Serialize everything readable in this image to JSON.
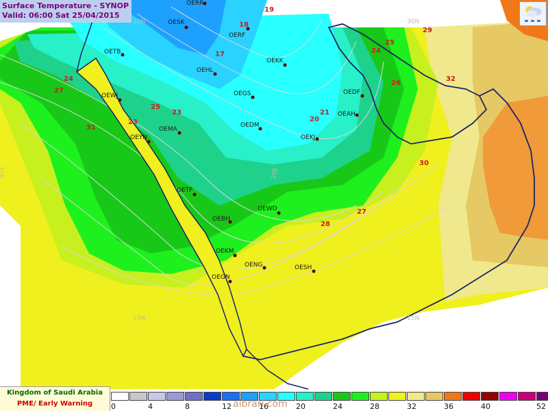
{
  "title": {
    "line1": "Surface Temperature  - SYNOP",
    "line2": "Valid: 06:00 Sat 25/04/2015"
  },
  "branding": {
    "line1": "Kingdom of Saudi Arabia",
    "line2": "PME/ Early Warning"
  },
  "watermark": "albrari.com",
  "colors": {
    "coast": "#1a2466",
    "station_dot": "#5a0000",
    "station_label": "#1a1a1a",
    "temp_label": "#cc1e1e",
    "contour": "#d8d8d8"
  },
  "legend": {
    "colors": [
      "#ffffff",
      "#c8c8c8",
      "#c8c8e8",
      "#9a9ad8",
      "#7070c8",
      "#0a3cc8",
      "#1e6ef0",
      "#1ea0ff",
      "#2ad2ff",
      "#28ffff",
      "#28f0c8",
      "#1ed28c",
      "#18c818",
      "#1ef01e",
      "#c8f01e",
      "#f0f01e",
      "#f0e88c",
      "#e6c864",
      "#f07818",
      "#f00000",
      "#960000",
      "#f000f0",
      "#c80078",
      "#780078"
    ],
    "ticks": [
      "0",
      "4",
      "8",
      "12",
      "16",
      "20",
      "24",
      "28",
      "32",
      "36",
      "40",
      "52"
    ]
  },
  "stations": [
    {
      "id": "OERR"
    },
    {
      "id": "OESK"
    },
    {
      "id": "OERF"
    },
    {
      "id": "OETB"
    },
    {
      "id": "OEHL"
    },
    {
      "id": "OEKK"
    },
    {
      "id": "OEWJ"
    },
    {
      "id": "OEGS"
    },
    {
      "id": "OEDF"
    },
    {
      "id": "OEAH"
    },
    {
      "id": "OEDM"
    },
    {
      "id": "OEMA"
    },
    {
      "id": "OEKJ"
    },
    {
      "id": "OEYN"
    },
    {
      "id": "OETF"
    },
    {
      "id": "OEWD"
    },
    {
      "id": "OEBH"
    },
    {
      "id": "OEKM"
    },
    {
      "id": "OENG"
    },
    {
      "id": "OESH"
    },
    {
      "id": "OEGN"
    }
  ],
  "temperatures": [
    {
      "value": "19"
    },
    {
      "value": "18"
    },
    {
      "value": "17"
    },
    {
      "value": "29"
    },
    {
      "value": "25"
    },
    {
      "value": "24"
    },
    {
      "value": "24"
    },
    {
      "value": "27"
    },
    {
      "value": "26"
    },
    {
      "value": "32"
    },
    {
      "value": "25"
    },
    {
      "value": "23"
    },
    {
      "value": "21"
    },
    {
      "value": "20"
    },
    {
      "value": "23"
    },
    {
      "value": "31"
    },
    {
      "value": "30"
    },
    {
      "value": "27"
    },
    {
      "value": "28"
    }
  ],
  "grid_labels": [
    {
      "text": "30N"
    },
    {
      "text": "30N"
    },
    {
      "text": "20E"
    },
    {
      "text": "15N"
    },
    {
      "text": "15N"
    },
    {
      "text": "45E"
    }
  ]
}
